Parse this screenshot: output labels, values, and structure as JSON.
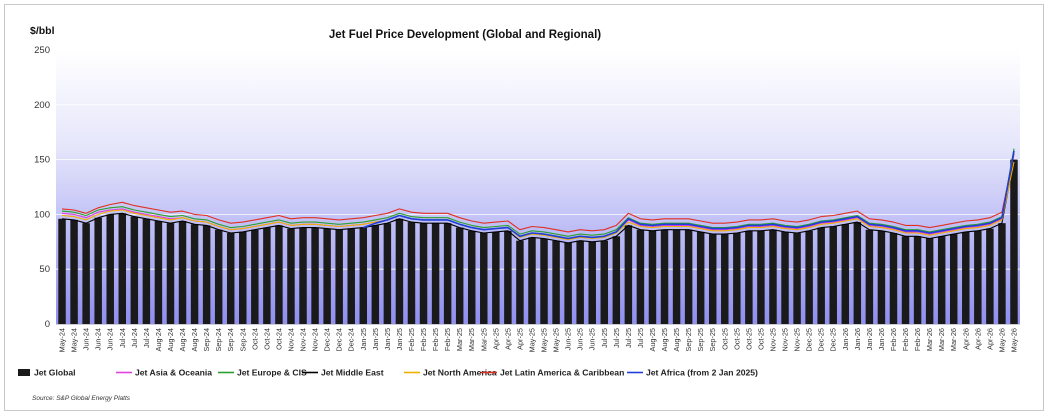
{
  "chart_data": {
    "type": "bar+line",
    "title": "Jet Fuel Price Development (Global and Regional)",
    "ylabel": "$/bbl",
    "ylim": [
      0,
      250
    ],
    "yticks": [
      0,
      50,
      100,
      150,
      200,
      250
    ],
    "grid": true,
    "legend_position": "bottom-left",
    "source": "Source:  S&P Global Energy Platts",
    "x": [
      "May-24",
      "May-24",
      "Jun-24",
      "Jun-24",
      "Jun-24",
      "Jul-24",
      "Jul-24",
      "Jul-24",
      "Aug-24",
      "Aug-24",
      "Aug-24",
      "Aug-24",
      "Sep-24",
      "Sep-24",
      "Sep-24",
      "Sep-24",
      "Oct-24",
      "Oct-24",
      "Oct-24",
      "Nov-24",
      "Nov-24",
      "Nov-24",
      "Dec-24",
      "Dec-24",
      "Dec-24",
      "Jan-25",
      "Jan-25",
      "Jan-25",
      "Jan-25",
      "Feb-25",
      "Feb-25",
      "Feb-25",
      "Feb-25",
      "Mar-25",
      "Mar-25",
      "Mar-25",
      "Apr-25",
      "Apr-25",
      "Apr-25",
      "May-25",
      "May-25",
      "May-25",
      "Jun-25",
      "Jun-25",
      "Jun-25",
      "Jul-25",
      "Jul-25",
      "Jul-25",
      "Jul-25",
      "Aug-25",
      "Aug-25",
      "Aug-25",
      "Sep-25",
      "Sep-25",
      "Sep-25",
      "Oct-25",
      "Oct-25",
      "Oct-25",
      "Oct-25",
      "Nov-25",
      "Nov-25",
      "Nov-25",
      "Dec-25",
      "Dec-25",
      "Dec-25",
      "Jan-26",
      "Jan-26",
      "Jan-26",
      "Jan-26",
      "Feb-26",
      "Feb-26",
      "Feb-26",
      "Mar-26",
      "Mar-26",
      "Mar-26",
      "Apr-26",
      "Apr-26",
      "Apr-26",
      "May-26",
      "May-26"
    ],
    "series": [
      {
        "name": "Jet Global",
        "kind": "bar",
        "color": "#1a1a1a",
        "values": [
          96,
          95,
          92,
          97,
          100,
          101,
          98,
          96,
          94,
          92,
          94,
          91,
          90,
          86,
          83,
          84,
          86,
          88,
          90,
          87,
          88,
          88,
          87,
          86,
          87,
          88,
          90,
          92,
          96,
          93,
          92,
          92,
          92,
          88,
          85,
          83,
          84,
          85,
          76,
          79,
          78,
          76,
          74,
          76,
          75,
          76,
          80,
          90,
          86,
          85,
          86,
          86,
          86,
          84,
          82,
          82,
          83,
          85,
          85,
          86,
          84,
          83,
          85,
          88,
          89,
          91,
          93,
          86,
          85,
          83,
          80,
          80,
          78,
          80,
          82,
          84,
          85,
          87,
          92,
          150
        ]
      },
      {
        "name": "Jet Asia & Oceania",
        "kind": "line",
        "color": "#e040e0",
        "values": [
          101,
          100,
          97,
          102,
          104,
          105,
          102,
          100,
          98,
          96,
          97,
          94,
          93,
          89,
          86,
          87,
          89,
          91,
          93,
          90,
          91,
          91,
          90,
          89,
          90,
          91,
          93,
          95,
          99,
          96,
          95,
          95,
          95,
          91,
          88,
          86,
          87,
          88,
          80,
          83,
          82,
          80,
          78,
          80,
          79,
          80,
          84,
          95,
          90,
          89,
          90,
          90,
          90,
          88,
          86,
          86,
          87,
          89,
          89,
          90,
          88,
          87,
          89,
          92,
          93,
          95,
          97,
          90,
          89,
          87,
          84,
          84,
          82,
          84,
          86,
          88,
          89,
          91,
          96,
          157
        ]
      },
      {
        "name": "Jet Europe & CIS",
        "kind": "line",
        "color": "#2ca02c",
        "values": [
          103,
          102,
          99,
          104,
          106,
          107,
          104,
          102,
          100,
          98,
          99,
          96,
          95,
          91,
          88,
          89,
          91,
          93,
          95,
          92,
          93,
          93,
          92,
          91,
          92,
          93,
          95,
          97,
          101,
          98,
          97,
          97,
          97,
          93,
          90,
          88,
          89,
          90,
          82,
          85,
          84,
          82,
          80,
          82,
          81,
          82,
          86,
          97,
          92,
          91,
          92,
          92,
          92,
          90,
          88,
          88,
          89,
          91,
          91,
          92,
          90,
          89,
          91,
          94,
          95,
          97,
          99,
          92,
          91,
          89,
          86,
          86,
          84,
          86,
          88,
          90,
          91,
          93,
          98,
          160
        ]
      },
      {
        "name": "Jet Middle East",
        "kind": "line",
        "color": "#000000",
        "values": [
          96,
          95,
          92,
          97,
          100,
          101,
          98,
          96,
          94,
          92,
          94,
          91,
          90,
          86,
          83,
          84,
          86,
          88,
          90,
          87,
          88,
          88,
          87,
          86,
          87,
          88,
          90,
          92,
          96,
          93,
          92,
          92,
          92,
          88,
          85,
          83,
          84,
          85,
          76,
          79,
          78,
          76,
          74,
          76,
          75,
          76,
          80,
          90,
          86,
          85,
          86,
          86,
          86,
          84,
          82,
          82,
          83,
          85,
          85,
          86,
          84,
          83,
          85,
          88,
          89,
          91,
          93,
          86,
          85,
          83,
          80,
          80,
          78,
          80,
          82,
          84,
          85,
          87,
          92,
          150
        ]
      },
      {
        "name": "Jet North America",
        "kind": "line",
        "color": "#f0b000",
        "values": [
          99,
          98,
          95,
          100,
          103,
          104,
          101,
          99,
          97,
          95,
          97,
          94,
          93,
          89,
          86,
          87,
          89,
          91,
          93,
          90,
          91,
          91,
          90,
          89,
          90,
          91,
          93,
          95,
          99,
          96,
          95,
          95,
          95,
          91,
          88,
          86,
          87,
          88,
          79,
          82,
          81,
          79,
          77,
          79,
          78,
          79,
          83,
          93,
          89,
          88,
          89,
          89,
          89,
          87,
          85,
          85,
          86,
          88,
          88,
          89,
          87,
          86,
          88,
          91,
          92,
          94,
          96,
          89,
          88,
          86,
          83,
          83,
          81,
          83,
          85,
          87,
          88,
          90,
          95,
          148
        ]
      },
      {
        "name": "Jet Latin America & Caribbean",
        "kind": "line",
        "color": "#e03020",
        "values": [
          105,
          104,
          101,
          106,
          109,
          111,
          108,
          106,
          104,
          102,
          103,
          100,
          99,
          95,
          92,
          93,
          95,
          97,
          99,
          96,
          97,
          97,
          96,
          95,
          96,
          97,
          99,
          101,
          105,
          102,
          101,
          101,
          101,
          97,
          94,
          92,
          93,
          94,
          86,
          89,
          88,
          86,
          84,
          86,
          85,
          86,
          90,
          101,
          96,
          95,
          96,
          96,
          96,
          94,
          92,
          92,
          93,
          95,
          95,
          96,
          94,
          93,
          95,
          98,
          99,
          101,
          103,
          96,
          95,
          93,
          90,
          90,
          88,
          90,
          92,
          94,
          95,
          97,
          102,
          155
        ]
      },
      {
        "name": "Jet Africa (from 2 Jan 2025)",
        "kind": "line",
        "color": "#1f3fd8",
        "values": [
          null,
          null,
          null,
          null,
          null,
          null,
          null,
          null,
          null,
          null,
          null,
          null,
          null,
          null,
          null,
          null,
          null,
          null,
          null,
          null,
          null,
          null,
          null,
          null,
          null,
          88,
          92,
          95,
          99,
          96,
          95,
          95,
          95,
          91,
          88,
          86,
          87,
          88,
          80,
          83,
          82,
          80,
          78,
          80,
          79,
          80,
          84,
          96,
          91,
          90,
          91,
          91,
          91,
          89,
          87,
          87,
          88,
          90,
          90,
          91,
          89,
          88,
          90,
          93,
          94,
          96,
          98,
          91,
          90,
          88,
          85,
          85,
          83,
          85,
          87,
          89,
          90,
          92,
          97,
          158
        ]
      }
    ]
  }
}
